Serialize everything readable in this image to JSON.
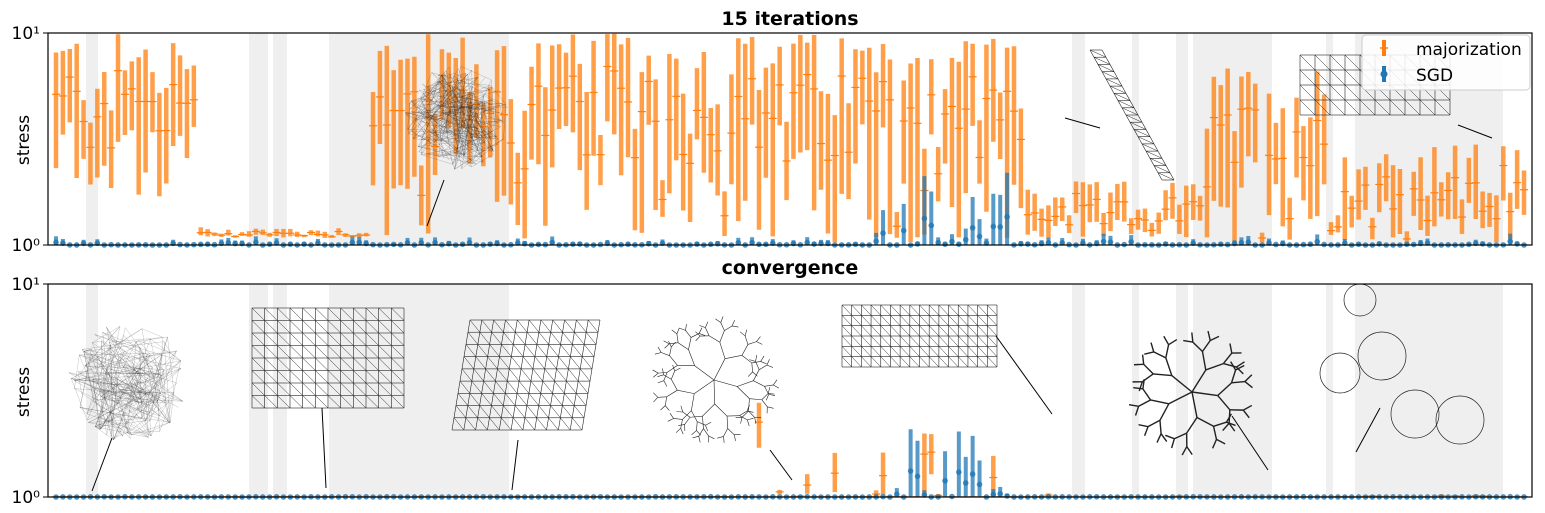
{
  "colors": {
    "majorization": "#ff7f0e",
    "sgd": "#1f77b4",
    "shade": "#efefef",
    "graph": "#222222"
  },
  "chart_data": [
    {
      "type": "scatter",
      "title": "15 iterations",
      "ylabel": "stress",
      "yscale": "log",
      "ylim": [
        1,
        10
      ],
      "yticks": [
        "10⁰",
        "10¹"
      ],
      "legend": {
        "placement": "top-right",
        "entries": [
          "majorization",
          "SGD"
        ]
      },
      "series": [
        {
          "name": "majorization",
          "description": "stress range per graph, with median",
          "segments": [
            {
              "from": 1,
              "to": 22,
              "low": 1.5,
              "high": 10,
              "median": 2.6
            },
            {
              "from": 22,
              "to": 47,
              "low": 1.08,
              "high": 1.22,
              "median": 1.15
            },
            {
              "from": 47,
              "to": 142,
              "low": 1.02,
              "high": 10,
              "median": 2.0
            },
            {
              "from": 142,
              "to": 168,
              "low": 1.05,
              "high": 2.0,
              "median": 1.4
            },
            {
              "from": 168,
              "to": 186,
              "low": 1.0,
              "high": 7.0,
              "median": 2.2
            },
            {
              "from": 186,
              "to": 214,
              "low": 1.02,
              "high": 3.0,
              "median": 1.3
            }
          ]
        },
        {
          "name": "SGD",
          "description": "stress per graph, near 10⁰",
          "segments": [
            {
              "from": 1,
              "to": 120,
              "low": 1.0,
              "high": 1.1,
              "median": 1.02
            },
            {
              "from": 120,
              "to": 142,
              "low": 1.0,
              "high": 2.2,
              "median": 1.2
            },
            {
              "from": 142,
              "to": 214,
              "low": 1.0,
              "high": 1.15,
              "median": 1.02
            }
          ]
        }
      ]
    },
    {
      "type": "scatter",
      "title": "convergence",
      "ylabel": "stress",
      "yscale": "log",
      "ylim": [
        1,
        10
      ],
      "yticks": [
        "10⁰",
        "10¹"
      ],
      "series": [
        {
          "name": "majorization",
          "segments": [
            {
              "from": 1,
              "to": 100,
              "low": 1.0,
              "high": 1.02,
              "median": 1.0
            },
            {
              "from": 100,
              "to": 142,
              "low": 1.0,
              "high": 3.5,
              "median": 1.2
            },
            {
              "from": 142,
              "to": 214,
              "low": 1.0,
              "high": 1.05,
              "median": 1.01
            }
          ]
        },
        {
          "name": "SGD",
          "segments": [
            {
              "from": 1,
              "to": 120,
              "low": 1.0,
              "high": 1.01,
              "median": 1.0
            },
            {
              "from": 120,
              "to": 142,
              "low": 1.0,
              "high": 2.2,
              "median": 1.1
            },
            {
              "from": 142,
              "to": 214,
              "low": 1.0,
              "high": 1.01,
              "median": 1.0
            }
          ]
        }
      ]
    }
  ]
}
